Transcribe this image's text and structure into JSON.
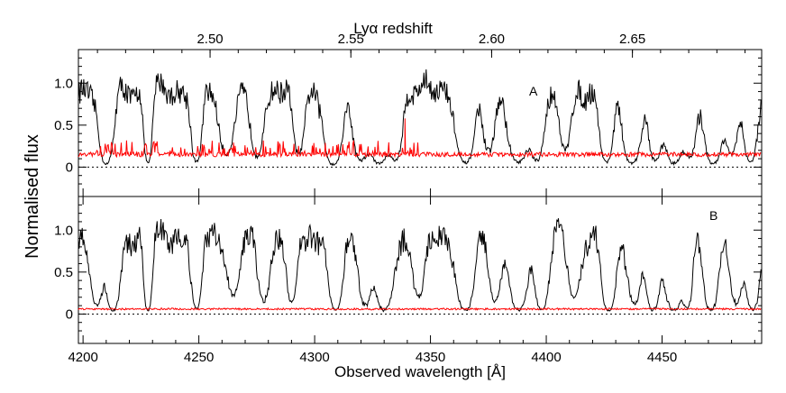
{
  "chart_data": {
    "type": "line",
    "ylabel": "Normalised flux",
    "xlabel": "Observed wavelength [Å]",
    "top_axis_label": "Lyα redshift",
    "xlim": [
      4198,
      4493
    ],
    "ylim": [
      -0.35,
      1.4
    ],
    "x_ticks": [
      4200,
      4250,
      4300,
      4350,
      4400,
      4450
    ],
    "x_tick_labels": [
      "4200",
      "4250",
      "4300",
      "4350",
      "4400",
      "4450"
    ],
    "top_ticks": [
      2.5,
      2.55,
      2.6,
      2.65
    ],
    "top_tick_labels": [
      "2.50",
      "2.55",
      "2.60",
      "2.65"
    ],
    "lya_rest_wavelength": 1215.67,
    "y_ticks": [
      0,
      0.5,
      1.0
    ],
    "y_tick_labels": [
      "0",
      "0.5",
      "1.0"
    ],
    "zero_line": 0,
    "panels": [
      {
        "label": "A",
        "series": [
          {
            "name": "flux",
            "color": "#000000",
            "baseline": 0.92
          },
          {
            "name": "error",
            "color": "#ff0000",
            "level": 0.15
          }
        ]
      },
      {
        "label": "B",
        "series": [
          {
            "name": "flux",
            "color": "#000000",
            "baseline": 0.92
          },
          {
            "name": "error",
            "color": "#ff0000",
            "level": 0.06
          }
        ]
      }
    ],
    "absorption_lines_A": [
      [
        4210,
        1.05,
        2.0
      ],
      [
        4228,
        0.95,
        1.2
      ],
      [
        4249,
        0.95,
        1.5
      ],
      [
        4262,
        0.55,
        2.5
      ],
      [
        4275,
        0.65,
        2.0
      ],
      [
        4293,
        0.6,
        1.8
      ],
      [
        4308,
        1.1,
        2.5
      ],
      [
        4320,
        0.75,
        2.5
      ],
      [
        4328,
        1.0,
        3.0
      ],
      [
        4335,
        0.7,
        2.0
      ],
      [
        4365,
        1.0,
        2.5
      ],
      [
        4375,
        0.5,
        2.0
      ],
      [
        4388,
        0.95,
        3.0
      ],
      [
        4396,
        0.8,
        2.0
      ],
      [
        4408,
        0.5,
        2.0
      ],
      [
        4426,
        0.9,
        2.0
      ],
      [
        4437,
        1.0,
        2.5
      ],
      [
        4447,
        0.85,
        2.0
      ],
      [
        4455,
        1.0,
        2.5
      ],
      [
        4462,
        0.7,
        2.0
      ],
      [
        4472,
        1.0,
        2.5
      ],
      [
        4480,
        0.6,
        2.0
      ],
      [
        4488,
        0.9,
        2.0
      ]
    ],
    "absorption_lines_B": [
      [
        4206,
        0.7,
        2.0
      ],
      [
        4213,
        1.0,
        2.0
      ],
      [
        4228,
        1.0,
        1.2
      ],
      [
        4249,
        0.95,
        1.5
      ],
      [
        4265,
        0.5,
        2.0
      ],
      [
        4278,
        0.55,
        2.0
      ],
      [
        4290,
        0.7,
        1.5
      ],
      [
        4309,
        1.0,
        2.0
      ],
      [
        4322,
        0.7,
        2.0
      ],
      [
        4330,
        1.0,
        2.5
      ],
      [
        4345,
        0.5,
        2.0
      ],
      [
        4365,
        1.0,
        2.5
      ],
      [
        4378,
        0.55,
        2.0
      ],
      [
        4388,
        1.0,
        2.5
      ],
      [
        4398,
        0.95,
        2.0
      ],
      [
        4412,
        0.55,
        2.0
      ],
      [
        4427,
        1.0,
        2.0
      ],
      [
        4438,
        0.65,
        2.0
      ],
      [
        4446,
        1.0,
        2.0
      ],
      [
        4455,
        1.0,
        2.5
      ],
      [
        4461,
        0.8,
        1.5
      ],
      [
        4471,
        1.0,
        2.0
      ],
      [
        4482,
        0.65,
        2.0
      ],
      [
        4489,
        0.95,
        2.0
      ]
    ]
  }
}
